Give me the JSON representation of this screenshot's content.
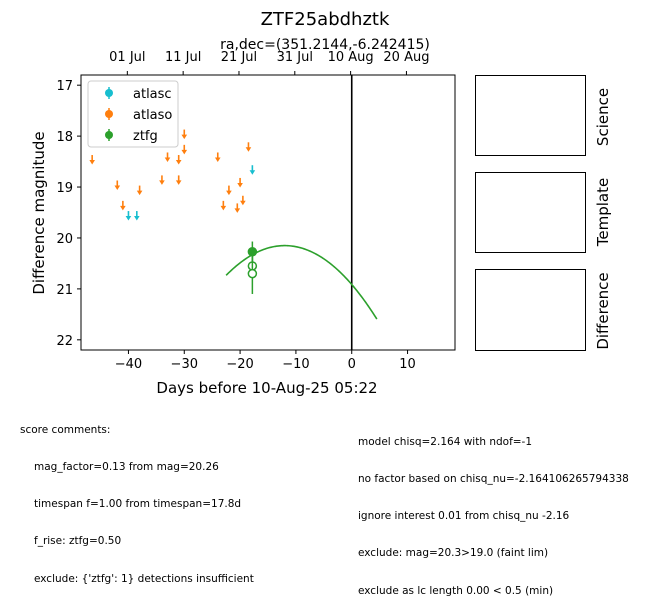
{
  "chart_data": {
    "type": "scatter",
    "title": "ZTF25abdhztk",
    "subtitle": "ra,dec=(351.2144,-6.242415)",
    "xlabel": "Days before 10-Aug-25 05:22",
    "ylabel": "Difference magnitude",
    "xlim": [
      -48.5,
      18.5
    ],
    "ylim": [
      22.2,
      16.8
    ],
    "y_inverted": true,
    "x_ticks": [
      -40,
      -30,
      -20,
      -10,
      0,
      10
    ],
    "y_ticks": [
      17,
      18,
      19,
      20,
      21,
      22
    ],
    "top_axis_ticks": [
      {
        "x": -40.2,
        "label": "01 Jul"
      },
      {
        "x": -30.2,
        "label": "11 Jul"
      },
      {
        "x": -20.2,
        "label": "21 Jul"
      },
      {
        "x": -10.2,
        "label": "31 Jul"
      },
      {
        "x": -0.2,
        "label": "10 Aug"
      },
      {
        "x": 9.8,
        "label": "20 Aug"
      }
    ],
    "vline_x": 0,
    "legend_position": "upper-left",
    "series": [
      {
        "name": "atlasc",
        "color": "#17becf",
        "upper_limits": [
          {
            "x": -40.0,
            "y": 19.55
          },
          {
            "x": -38.5,
            "y": 19.55
          },
          {
            "x": -17.8,
            "y": 18.65
          }
        ],
        "detections": []
      },
      {
        "name": "atlaso",
        "color": "#ff7f0e",
        "upper_limits": [
          {
            "x": -46.5,
            "y": 18.45
          },
          {
            "x": -42.0,
            "y": 18.95
          },
          {
            "x": -41.0,
            "y": 19.35
          },
          {
            "x": -38.0,
            "y": 19.05
          },
          {
            "x": -34.0,
            "y": 18.85
          },
          {
            "x": -33.0,
            "y": 18.4
          },
          {
            "x": -31.0,
            "y": 18.45
          },
          {
            "x": -31.0,
            "y": 18.85
          },
          {
            "x": -30.0,
            "y": 18.25
          },
          {
            "x": -30.0,
            "y": 17.95
          },
          {
            "x": -24.0,
            "y": 18.4
          },
          {
            "x": -23.0,
            "y": 19.35
          },
          {
            "x": -22.0,
            "y": 19.05
          },
          {
            "x": -20.5,
            "y": 19.4
          },
          {
            "x": -20.0,
            "y": 18.9
          },
          {
            "x": -19.5,
            "y": 19.25
          },
          {
            "x": -18.5,
            "y": 18.2
          }
        ],
        "detections": []
      },
      {
        "name": "ztfg",
        "color": "#2ca02c",
        "upper_limits": [],
        "detections": [
          {
            "x": -17.8,
            "y": 20.27,
            "err": 0.2,
            "filled": true
          },
          {
            "x": -17.8,
            "y": 20.55,
            "err": 0.2,
            "filled": false
          },
          {
            "x": -17.8,
            "y": 20.7,
            "err": 0.4,
            "filled": false
          }
        ],
        "model_curve": {
          "peak_x": -12,
          "peak_y": 20.15,
          "k": 0.0053,
          "x_start": -22.5,
          "x_end": 4.5
        }
      }
    ]
  },
  "comments_left": {
    "heading": "score comments:",
    "lines": [
      "mag_factor=0.13 from mag=20.26",
      "timespan f=1.00 from timespan=17.8d",
      "f_rise: ztfg=0.50",
      "exclude: {'ztfg': 1} detections insufficient"
    ]
  },
  "comments_right": {
    "lines": [
      "model chisq=2.164 with ndof=-1",
      "no factor based on chisq_nu=-2.164106265794338",
      "ignore interest 0.01 from chisq_nu -2.16",
      "exclude: mag=20.3>19.0 (faint lim)",
      "exclude as lc length 0.00 < 0.5 (min)"
    ]
  },
  "side_panels": [
    "Science",
    "Template",
    "Difference"
  ]
}
